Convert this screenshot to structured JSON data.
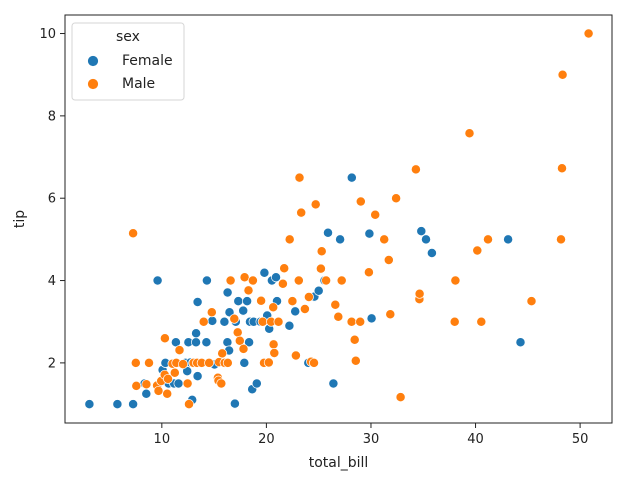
{
  "chart_data": {
    "type": "scatter",
    "xlabel": "total_bill",
    "ylabel": "tip",
    "xlim": [
      0.74,
      53.05
    ],
    "ylim": [
      0.54,
      10.45
    ],
    "xticks": [
      10,
      20,
      30,
      40,
      50
    ],
    "yticks": [
      2,
      4,
      6,
      8,
      10
    ],
    "grid": false,
    "legend": {
      "title": "sex",
      "placement": "top-left"
    },
    "series": [
      {
        "name": "Female",
        "color": "#1f77b4",
        "points": [
          [
            3.07,
            1.0
          ],
          [
            5.75,
            1.0
          ],
          [
            7.25,
            1.0
          ],
          [
            8.35,
            1.5
          ],
          [
            8.51,
            1.25
          ],
          [
            9.6,
            4.0
          ],
          [
            10.07,
            1.83
          ],
          [
            10.33,
            2.0
          ],
          [
            10.34,
            2.0
          ],
          [
            10.65,
            1.5
          ],
          [
            11.17,
            1.5
          ],
          [
            11.35,
            2.5
          ],
          [
            11.59,
            1.5
          ],
          [
            12.26,
            2.0
          ],
          [
            12.43,
            1.8
          ],
          [
            12.54,
            2.5
          ],
          [
            12.74,
            2.01
          ],
          [
            12.9,
            1.1
          ],
          [
            13.0,
            2.0
          ],
          [
            13.13,
            2.0
          ],
          [
            13.27,
            2.5
          ],
          [
            13.28,
            2.72
          ],
          [
            13.42,
            3.48
          ],
          [
            13.42,
            1.68
          ],
          [
            14.26,
            2.5
          ],
          [
            14.31,
            4.0
          ],
          [
            14.83,
            3.02
          ],
          [
            15.04,
            1.96
          ],
          [
            15.98,
            3.0
          ],
          [
            16.27,
            2.5
          ],
          [
            16.29,
            3.71
          ],
          [
            16.43,
            2.3
          ],
          [
            16.47,
            3.23
          ],
          [
            16.99,
            1.01
          ],
          [
            17.07,
            3.0
          ],
          [
            17.31,
            3.5
          ],
          [
            17.78,
            3.27
          ],
          [
            17.89,
            2.0
          ],
          [
            18.15,
            3.5
          ],
          [
            18.35,
            2.5
          ],
          [
            18.43,
            3.0
          ],
          [
            18.64,
            1.36
          ],
          [
            18.78,
            3.0
          ],
          [
            19.08,
            1.5
          ],
          [
            19.44,
            3.0
          ],
          [
            19.81,
            4.19
          ],
          [
            20.08,
            3.15
          ],
          [
            20.27,
            2.83
          ],
          [
            20.53,
            4.0
          ],
          [
            20.92,
            4.08
          ],
          [
            21.01,
            3.5
          ],
          [
            22.2,
            2.9
          ],
          [
            22.75,
            3.25
          ],
          [
            24.01,
            2.0
          ],
          [
            24.59,
            3.61
          ],
          [
            25.0,
            3.75
          ],
          [
            25.89,
            5.16
          ],
          [
            25.56,
            4.0
          ],
          [
            26.41,
            1.5
          ],
          [
            27.05,
            5.0
          ],
          [
            28.17,
            6.5
          ],
          [
            29.85,
            5.14
          ],
          [
            30.06,
            3.08
          ],
          [
            34.81,
            5.2
          ],
          [
            35.26,
            5.0
          ],
          [
            35.83,
            4.67
          ],
          [
            43.11,
            5.0
          ],
          [
            44.3,
            2.5
          ]
        ]
      },
      {
        "name": "Male",
        "color": "#ff7f0e",
        "points": [
          [
            7.25,
            5.15
          ],
          [
            7.51,
            2.0
          ],
          [
            7.56,
            1.44
          ],
          [
            8.52,
            1.48
          ],
          [
            8.77,
            2.0
          ],
          [
            9.55,
            1.45
          ],
          [
            9.68,
            1.32
          ],
          [
            9.94,
            1.56
          ],
          [
            10.27,
            1.71
          ],
          [
            10.29,
            2.6
          ],
          [
            10.51,
            1.25
          ],
          [
            10.59,
            1.61
          ],
          [
            11.02,
            1.98
          ],
          [
            11.24,
            1.76
          ],
          [
            11.38,
            2.0
          ],
          [
            11.69,
            2.31
          ],
          [
            12.02,
            1.97
          ],
          [
            12.46,
            1.5
          ],
          [
            12.6,
            1.0
          ],
          [
            13.03,
            2.0
          ],
          [
            13.37,
            2.0
          ],
          [
            13.81,
            2.0
          ],
          [
            14.0,
            3.0
          ],
          [
            14.52,
            2.0
          ],
          [
            14.78,
            3.23
          ],
          [
            15.36,
            1.64
          ],
          [
            15.42,
            1.57
          ],
          [
            15.48,
            2.02
          ],
          [
            15.69,
            1.5
          ],
          [
            15.77,
            2.23
          ],
          [
            16.0,
            2.0
          ],
          [
            16.31,
            2.0
          ],
          [
            16.58,
            4.0
          ],
          [
            16.93,
            3.07
          ],
          [
            17.26,
            2.74
          ],
          [
            17.46,
            2.54
          ],
          [
            17.81,
            2.34
          ],
          [
            17.92,
            4.08
          ],
          [
            18.24,
            3.76
          ],
          [
            18.29,
            3.76
          ],
          [
            18.71,
            4.0
          ],
          [
            19.49,
            3.51
          ],
          [
            19.65,
            3.0
          ],
          [
            19.77,
            2.0
          ],
          [
            20.23,
            2.01
          ],
          [
            20.45,
            3.0
          ],
          [
            20.65,
            3.35
          ],
          [
            20.69,
            2.45
          ],
          [
            20.76,
            2.24
          ],
          [
            21.16,
            3.0
          ],
          [
            21.7,
            4.3
          ],
          [
            21.58,
            3.92
          ],
          [
            22.23,
            5.0
          ],
          [
            22.49,
            3.5
          ],
          [
            22.82,
            2.18
          ],
          [
            23.1,
            4.0
          ],
          [
            23.17,
            6.5
          ],
          [
            23.33,
            5.65
          ],
          [
            23.68,
            3.31
          ],
          [
            24.06,
            3.6
          ],
          [
            24.27,
            2.03
          ],
          [
            24.55,
            2.0
          ],
          [
            24.71,
            5.85
          ],
          [
            25.21,
            4.29
          ],
          [
            25.29,
            4.71
          ],
          [
            25.71,
            4.0
          ],
          [
            26.59,
            3.41
          ],
          [
            26.88,
            3.12
          ],
          [
            27.2,
            4.0
          ],
          [
            28.15,
            3.0
          ],
          [
            28.44,
            2.56
          ],
          [
            28.55,
            2.05
          ],
          [
            28.97,
            3.0
          ],
          [
            29.03,
            5.92
          ],
          [
            29.8,
            4.2
          ],
          [
            30.4,
            5.6
          ],
          [
            31.27,
            5.0
          ],
          [
            31.71,
            4.5
          ],
          [
            31.85,
            3.18
          ],
          [
            32.4,
            6.0
          ],
          [
            32.83,
            1.17
          ],
          [
            34.3,
            6.7
          ],
          [
            34.63,
            3.55
          ],
          [
            34.65,
            3.68
          ],
          [
            38.01,
            3.0
          ],
          [
            38.07,
            4.0
          ],
          [
            39.42,
            7.58
          ],
          [
            40.17,
            4.73
          ],
          [
            40.55,
            3.0
          ],
          [
            41.19,
            5.0
          ],
          [
            45.35,
            3.5
          ],
          [
            48.17,
            5.0
          ],
          [
            48.27,
            6.73
          ],
          [
            48.33,
            9.0
          ],
          [
            50.81,
            10.0
          ]
        ]
      }
    ]
  }
}
